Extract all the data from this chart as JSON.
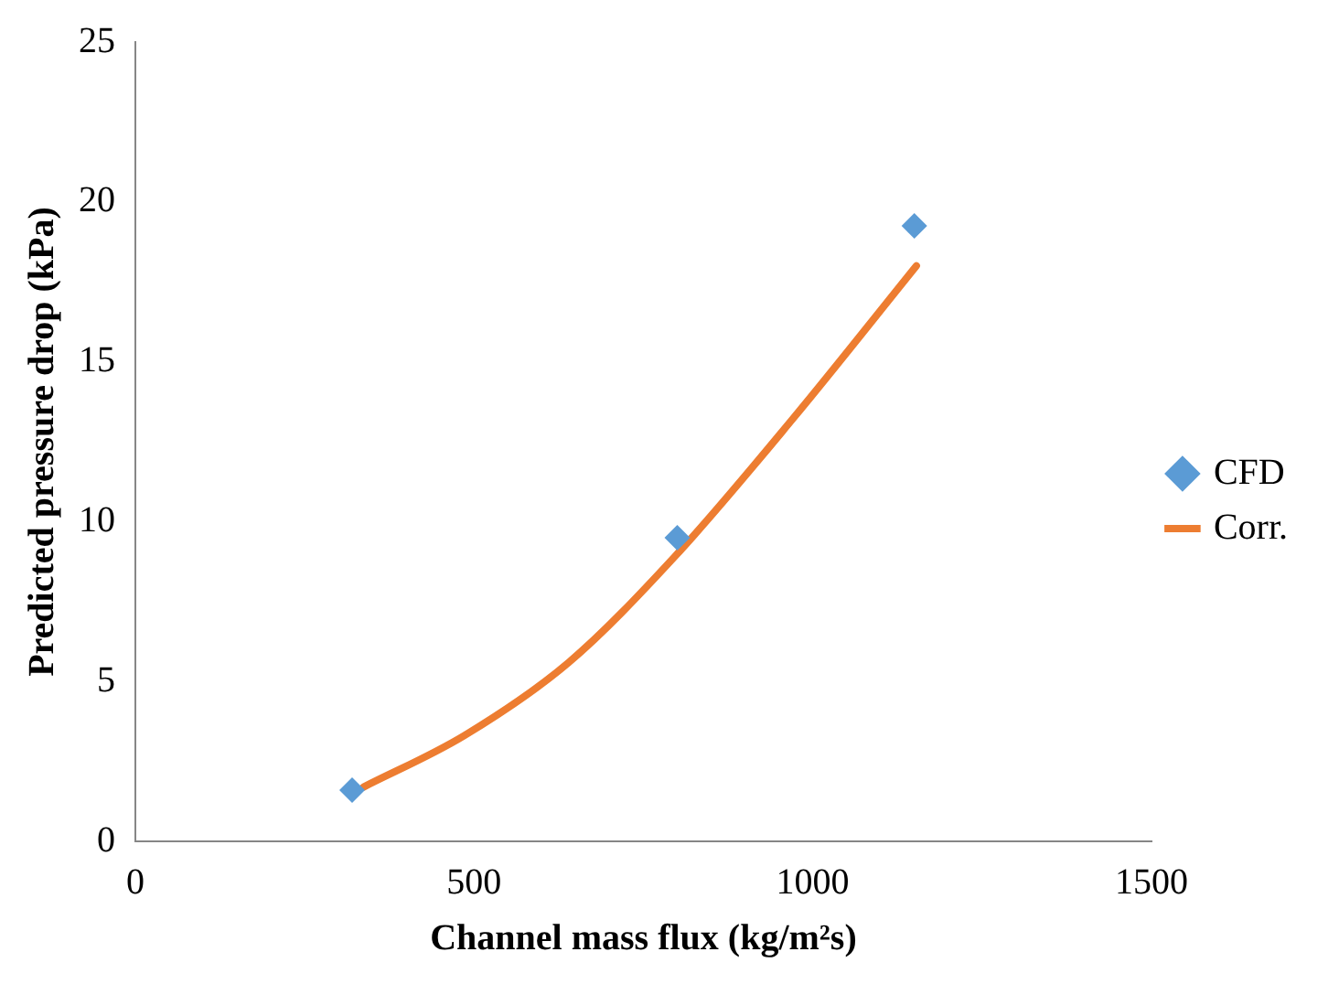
{
  "chart_data": {
    "type": "scatter",
    "xlabel": "Channel mass flux (kg/m²s)",
    "ylabel": "Predicted pressure drop (kPa)",
    "xlim": [
      0,
      1500
    ],
    "xticks": [
      0,
      500,
      1000,
      1500
    ],
    "ylim": [
      0,
      25
    ],
    "yticks": [
      0,
      5,
      10,
      15,
      20,
      25
    ],
    "grid": false,
    "legend": "right",
    "series": [
      {
        "name": "CFD",
        "color": "#5b9bd5",
        "marker": "diamond",
        "x": [
          320,
          800,
          1150
        ],
        "values": [
          1.6,
          9.5,
          19.25
        ]
      },
      {
        "name": "Corr.",
        "type": "line",
        "color": "#ed7d31",
        "marker": "none",
        "line_style": "solid",
        "x": [
          337,
          485,
          640,
          796,
          970,
          1153
        ],
        "values": [
          1.7,
          3.3,
          5.6,
          8.9,
          13.2,
          18.0
        ]
      }
    ]
  }
}
